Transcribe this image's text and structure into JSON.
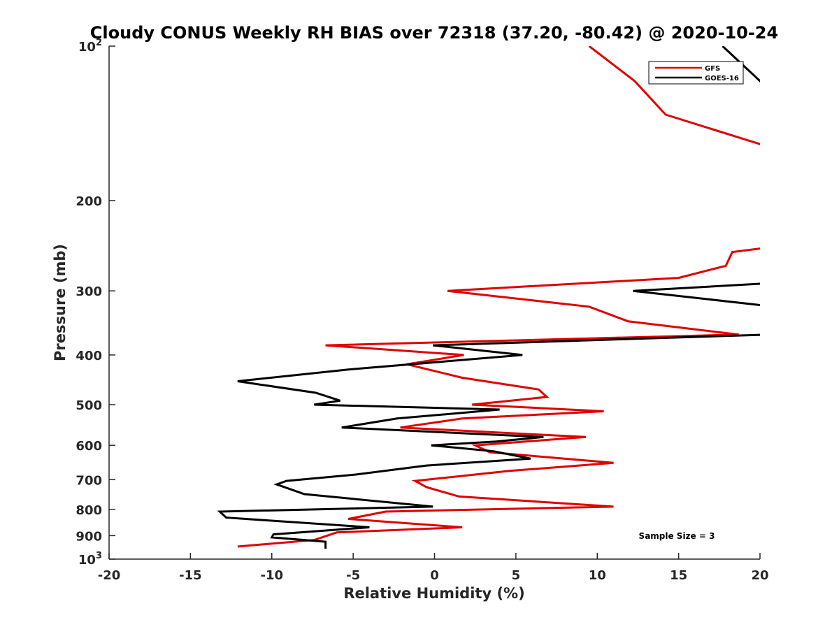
{
  "chart_data": {
    "type": "line",
    "title": "Cloudy CONUS Weekly RH BIAS over 72318 (37.20, -80.42) @ 2020-10-24",
    "xlabel": "Relative Humidity (%)",
    "ylabel": "Pressure (mb)",
    "xlim": [
      -20,
      20
    ],
    "ylim": [
      100,
      1000
    ],
    "yscale": "log",
    "y_reversed": true,
    "x_ticks": [
      -20,
      -15,
      -10,
      -5,
      0,
      5,
      10,
      15,
      20
    ],
    "y_ticks": [
      {
        "value": 100,
        "label": "10",
        "sup": "2"
      },
      {
        "value": 200,
        "label": "200",
        "sup": ""
      },
      {
        "value": 300,
        "label": "300",
        "sup": ""
      },
      {
        "value": 400,
        "label": "400",
        "sup": ""
      },
      {
        "value": 500,
        "label": "500",
        "sup": ""
      },
      {
        "value": 600,
        "label": "600",
        "sup": ""
      },
      {
        "value": 700,
        "label": "700",
        "sup": ""
      },
      {
        "value": 800,
        "label": "800",
        "sup": ""
      },
      {
        "value": 900,
        "label": "900",
        "sup": ""
      },
      {
        "value": 1000,
        "label": "10",
        "sup": "3"
      }
    ],
    "grid": false,
    "legend_position": "top-right",
    "annotation": "Sample Size = 3",
    "series": [
      {
        "name": "GFS",
        "color": "#e00000",
        "segments": [
          [
            [
              9.5,
              100
            ],
            [
              12.3,
              117
            ],
            [
              14.2,
              136
            ],
            [
              20.5,
              157
            ]
          ],
          [
            [
              20.5,
              247
            ],
            [
              18.3,
              252
            ],
            [
              17.9,
              268
            ],
            [
              15.0,
              283
            ],
            [
              0.8,
              300
            ],
            [
              9.5,
              322
            ],
            [
              11.9,
              344
            ],
            [
              18.7,
              365
            ],
            [
              -6.7,
              383
            ],
            [
              1.8,
              400
            ],
            [
              -1.7,
              417
            ],
            [
              1.7,
              443
            ],
            [
              6.4,
              467
            ],
            [
              6.9,
              483
            ],
            [
              2.3,
              500
            ],
            [
              10.4,
              515
            ],
            [
              1.7,
              532
            ],
            [
              -2.1,
              554
            ],
            [
              9.3,
              578
            ],
            [
              2.5,
              600
            ],
            [
              3.4,
              619
            ],
            [
              11.0,
              649
            ],
            [
              4.6,
              673
            ],
            [
              -1.2,
              704
            ],
            [
              -0.5,
              724
            ],
            [
              1.5,
              755
            ],
            [
              11.0,
              790
            ],
            [
              -3.0,
              808
            ],
            [
              -5.3,
              835
            ],
            [
              1.7,
              867
            ],
            [
              -6.0,
              887
            ],
            [
              -7.4,
              918
            ],
            [
              -12.1,
              945
            ]
          ]
        ]
      },
      {
        "name": "GOES-16",
        "color": "#000000",
        "segments": [
          [
            [
              17.7,
              100
            ],
            [
              20.5,
              121
            ]
          ],
          [
            [
              20.5,
              290
            ],
            [
              12.2,
              300
            ],
            [
              20.5,
              321
            ]
          ],
          [
            [
              20.5,
              365
            ],
            [
              -0.1,
              383
            ],
            [
              5.4,
              400
            ],
            [
              -5.3,
              427
            ],
            [
              -12.1,
              450
            ],
            [
              -7.3,
              474
            ],
            [
              -5.8,
              491
            ],
            [
              -7.4,
              500
            ],
            [
              4.0,
              511
            ],
            [
              -2.3,
              532
            ],
            [
              -5.7,
              554
            ],
            [
              6.7,
              578
            ],
            [
              3.8,
              590
            ],
            [
              -0.2,
              600
            ],
            [
              3.6,
              616
            ],
            [
              5.9,
              637
            ],
            [
              -0.5,
              657
            ],
            [
              -4.8,
              684
            ],
            [
              -9.1,
              704
            ],
            [
              -9.7,
              715
            ],
            [
              -8.0,
              747
            ],
            [
              -0.1,
              790
            ],
            [
              -13.2,
              808
            ],
            [
              -12.8,
              830
            ],
            [
              -4.0,
              867
            ],
            [
              -9.9,
              895
            ],
            [
              -10.0,
              907
            ],
            [
              -6.7,
              925
            ],
            [
              -6.7,
              955
            ]
          ]
        ]
      }
    ]
  }
}
